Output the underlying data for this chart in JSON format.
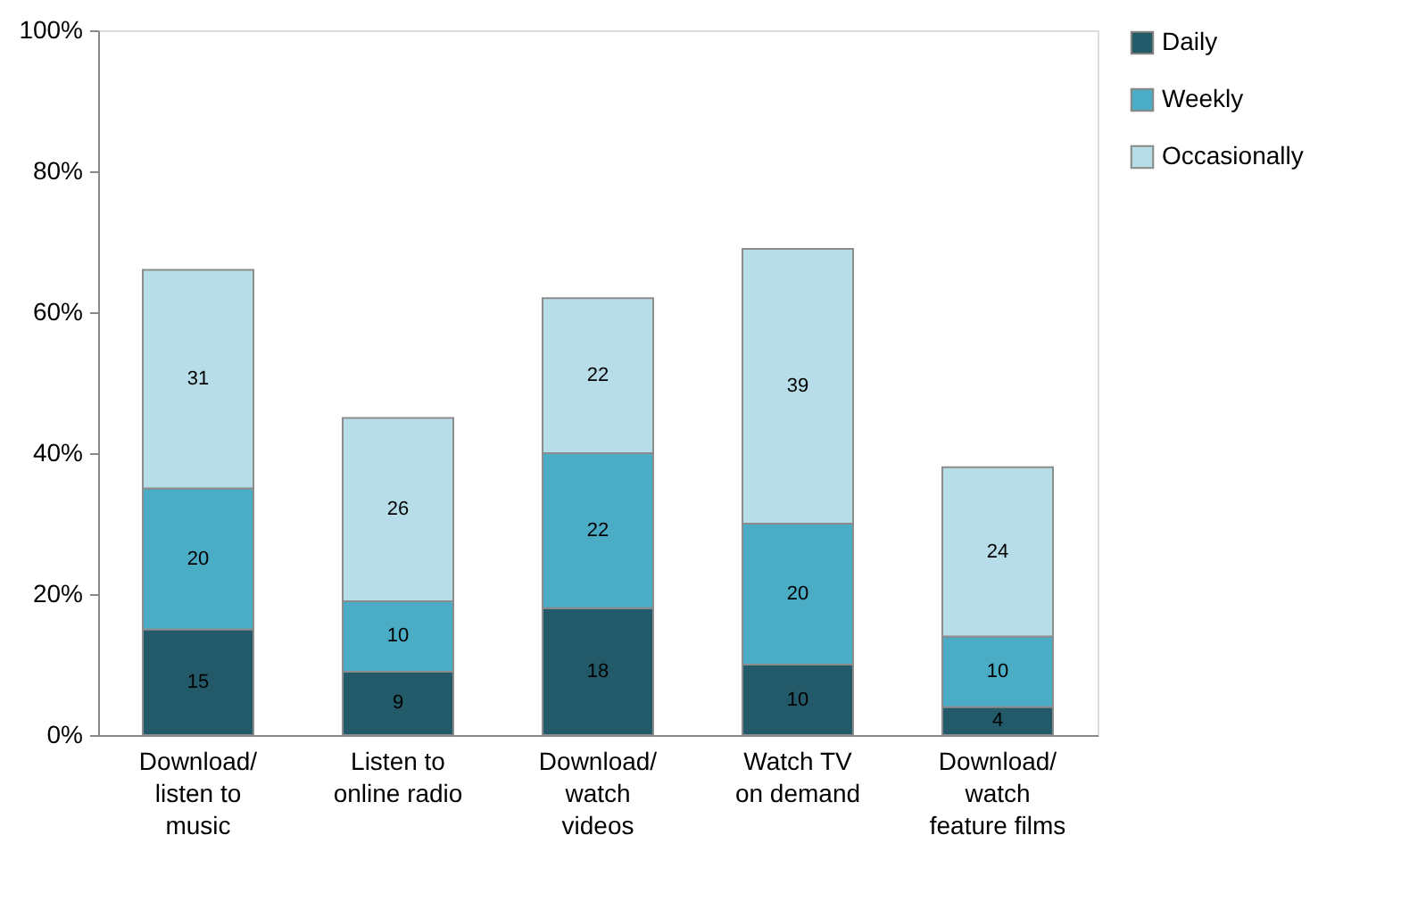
{
  "chart_data": {
    "type": "bar",
    "stacked": true,
    "data_labels": true,
    "legend": "right",
    "grid": false,
    "categories": [
      "Download/\nlisten to\nmusic",
      "Listen to\nonline radio",
      "Download/\nwatch\nvideos",
      "Watch TV\non demand",
      "Download/\nwatch\nfeature films"
    ],
    "series": [
      {
        "name": "Daily",
        "color": "#235a6a",
        "values": [
          15,
          9,
          18,
          10,
          4
        ]
      },
      {
        "name": "Weekly",
        "color": "#4bacc6",
        "values": [
          20,
          10,
          22,
          20,
          10
        ]
      },
      {
        "name": "Occasionally",
        "color": "#b7dde8",
        "values": [
          31,
          26,
          22,
          39,
          24
        ]
      }
    ],
    "ylim": [
      0,
      100
    ],
    "yticks": [
      {
        "value": 0,
        "label": "0%"
      },
      {
        "value": 20,
        "label": "20%"
      },
      {
        "value": 40,
        "label": "40%"
      },
      {
        "value": 60,
        "label": "60%"
      },
      {
        "value": 80,
        "label": "80%"
      },
      {
        "value": 100,
        "label": "100%"
      }
    ]
  }
}
